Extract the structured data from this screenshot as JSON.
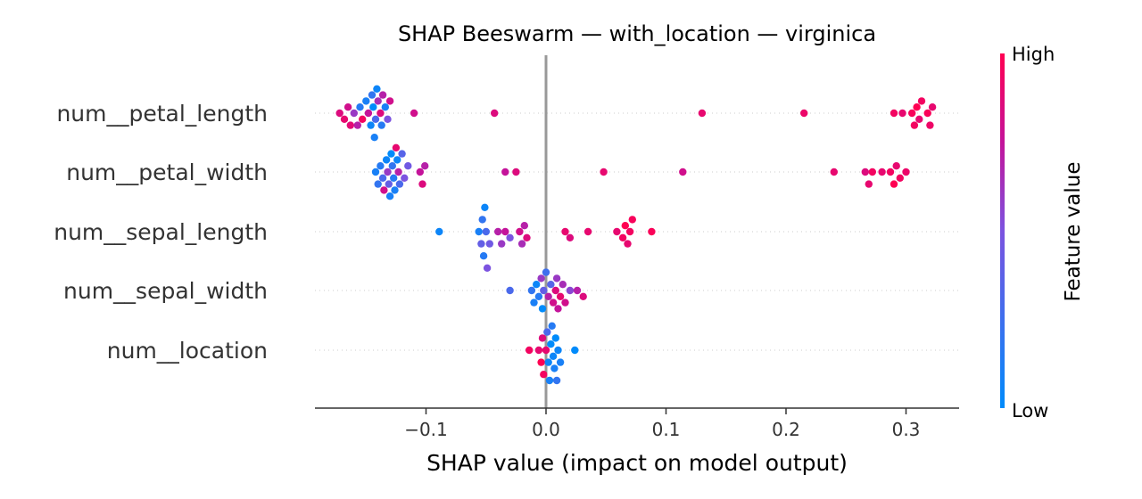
{
  "chart_data": {
    "type": "scatter",
    "subtype": "shap-beeswarm",
    "title": "SHAP Beeswarm — with_location — virginica",
    "xlabel": "SHAP value (impact on model output)",
    "xlim": [
      -0.19,
      0.345
    ],
    "x_ticks": [
      {
        "value": -0.1,
        "label": "−0.1"
      },
      {
        "value": 0.0,
        "label": "0.0"
      },
      {
        "value": 0.1,
        "label": "0.1"
      },
      {
        "value": 0.2,
        "label": "0.2"
      },
      {
        "value": 0.3,
        "label": "0.3"
      }
    ],
    "grid": false,
    "colorbar": {
      "title": "Feature value",
      "high_label": "High",
      "low_label": "Low",
      "high_color": "#ff0052",
      "low_color": "#008bfb"
    },
    "features": [
      {
        "name": "num__petal_length",
        "points": [
          {
            "x": -0.172,
            "v": 0.85
          },
          {
            "x": -0.168,
            "v": 0.9
          },
          {
            "x": -0.165,
            "v": 0.8
          },
          {
            "x": -0.163,
            "v": 0.88
          },
          {
            "x": -0.16,
            "v": 0.6
          },
          {
            "x": -0.157,
            "v": 0.7
          },
          {
            "x": -0.155,
            "v": 0.15
          },
          {
            "x": -0.153,
            "v": 0.95
          },
          {
            "x": -0.15,
            "v": 0.1
          },
          {
            "x": -0.148,
            "v": 0.75
          },
          {
            "x": -0.146,
            "v": 0.05
          },
          {
            "x": -0.145,
            "v": 0.2
          },
          {
            "x": -0.144,
            "v": 0.0
          },
          {
            "x": -0.143,
            "v": 0.1
          },
          {
            "x": -0.142,
            "v": 0.3
          },
          {
            "x": -0.141,
            "v": 0.05
          },
          {
            "x": -0.14,
            "v": 0.65
          },
          {
            "x": -0.138,
            "v": 0.85
          },
          {
            "x": -0.137,
            "v": 0.15
          },
          {
            "x": -0.136,
            "v": 0.7
          },
          {
            "x": -0.134,
            "v": 0.1
          },
          {
            "x": -0.132,
            "v": 0.5
          },
          {
            "x": -0.13,
            "v": 0.8
          },
          {
            "x": -0.11,
            "v": 0.8
          },
          {
            "x": -0.043,
            "v": 0.85
          },
          {
            "x": 0.13,
            "v": 0.9
          },
          {
            "x": 0.215,
            "v": 0.92
          },
          {
            "x": 0.29,
            "v": 0.95
          },
          {
            "x": 0.297,
            "v": 0.9
          },
          {
            "x": 0.305,
            "v": 0.97
          },
          {
            "x": 0.307,
            "v": 0.95
          },
          {
            "x": 0.309,
            "v": 1.0
          },
          {
            "x": 0.311,
            "v": 0.9
          },
          {
            "x": 0.313,
            "v": 0.95
          },
          {
            "x": 0.318,
            "v": 0.98
          },
          {
            "x": 0.32,
            "v": 0.93
          },
          {
            "x": 0.322,
            "v": 0.9
          }
        ]
      },
      {
        "name": "num__petal_width",
        "points": [
          {
            "x": -0.142,
            "v": 0.1
          },
          {
            "x": -0.14,
            "v": 0.2
          },
          {
            "x": -0.138,
            "v": 0.15
          },
          {
            "x": -0.136,
            "v": 0.3
          },
          {
            "x": -0.135,
            "v": 0.8
          },
          {
            "x": -0.133,
            "v": 0.05
          },
          {
            "x": -0.132,
            "v": 0.6
          },
          {
            "x": -0.131,
            "v": 0.4
          },
          {
            "x": -0.13,
            "v": 0.1
          },
          {
            "x": -0.129,
            "v": 0.0
          },
          {
            "x": -0.128,
            "v": 0.2
          },
          {
            "x": -0.127,
            "v": 0.15
          },
          {
            "x": -0.126,
            "v": 0.1
          },
          {
            "x": -0.125,
            "v": 0.9
          },
          {
            "x": -0.124,
            "v": 0.05
          },
          {
            "x": -0.123,
            "v": 0.7
          },
          {
            "x": -0.122,
            "v": 0.3
          },
          {
            "x": -0.12,
            "v": 0.35
          },
          {
            "x": -0.118,
            "v": 0.5
          },
          {
            "x": -0.115,
            "v": 0.45
          },
          {
            "x": -0.105,
            "v": 0.75
          },
          {
            "x": -0.103,
            "v": 0.85
          },
          {
            "x": -0.101,
            "v": 0.7
          },
          {
            "x": -0.034,
            "v": 0.75
          },
          {
            "x": -0.025,
            "v": 0.85
          },
          {
            "x": 0.048,
            "v": 0.9
          },
          {
            "x": 0.114,
            "v": 0.8
          },
          {
            "x": 0.24,
            "v": 0.9
          },
          {
            "x": 0.266,
            "v": 0.85
          },
          {
            "x": 0.269,
            "v": 0.9
          },
          {
            "x": 0.272,
            "v": 0.95
          },
          {
            "x": 0.28,
            "v": 0.9
          },
          {
            "x": 0.287,
            "v": 0.95
          },
          {
            "x": 0.29,
            "v": 1.0
          },
          {
            "x": 0.292,
            "v": 0.9
          },
          {
            "x": 0.295,
            "v": 0.95
          },
          {
            "x": 0.3,
            "v": 0.92
          }
        ]
      },
      {
        "name": "num__sepal_length",
        "points": [
          {
            "x": -0.089,
            "v": 0.05
          },
          {
            "x": -0.056,
            "v": 0.1
          },
          {
            "x": -0.054,
            "v": 0.4
          },
          {
            "x": -0.053,
            "v": 0.2
          },
          {
            "x": -0.052,
            "v": 0.15
          },
          {
            "x": -0.051,
            "v": 0.05
          },
          {
            "x": -0.05,
            "v": 0.3
          },
          {
            "x": -0.049,
            "v": 0.5
          },
          {
            "x": -0.047,
            "v": 0.45
          },
          {
            "x": -0.04,
            "v": 0.7
          },
          {
            "x": -0.037,
            "v": 0.6
          },
          {
            "x": -0.034,
            "v": 0.75
          },
          {
            "x": -0.03,
            "v": 0.5
          },
          {
            "x": -0.022,
            "v": 0.8
          },
          {
            "x": -0.02,
            "v": 0.65
          },
          {
            "x": -0.018,
            "v": 0.7
          },
          {
            "x": -0.016,
            "v": 0.85
          },
          {
            "x": 0.016,
            "v": 0.9
          },
          {
            "x": 0.02,
            "v": 0.85
          },
          {
            "x": 0.035,
            "v": 0.9
          },
          {
            "x": 0.059,
            "v": 0.9
          },
          {
            "x": 0.064,
            "v": 0.95
          },
          {
            "x": 0.066,
            "v": 1.0
          },
          {
            "x": 0.068,
            "v": 0.9
          },
          {
            "x": 0.07,
            "v": 0.95
          },
          {
            "x": 0.072,
            "v": 0.97
          },
          {
            "x": 0.088,
            "v": 0.98
          }
        ]
      },
      {
        "name": "num__sepal_width",
        "points": [
          {
            "x": -0.03,
            "v": 0.3
          },
          {
            "x": -0.012,
            "v": 0.2
          },
          {
            "x": -0.01,
            "v": 0.1
          },
          {
            "x": -0.008,
            "v": 0.05
          },
          {
            "x": -0.006,
            "v": 0.15
          },
          {
            "x": -0.004,
            "v": 0.6
          },
          {
            "x": -0.003,
            "v": 0.0
          },
          {
            "x": -0.002,
            "v": 0.4
          },
          {
            "x": 0.0,
            "v": 0.25
          },
          {
            "x": 0.002,
            "v": 0.7
          },
          {
            "x": 0.004,
            "v": 0.35
          },
          {
            "x": 0.006,
            "v": 0.8
          },
          {
            "x": 0.008,
            "v": 0.85
          },
          {
            "x": 0.009,
            "v": 0.6
          },
          {
            "x": 0.01,
            "v": 0.75
          },
          {
            "x": 0.012,
            "v": 0.9
          },
          {
            "x": 0.014,
            "v": 0.65
          },
          {
            "x": 0.016,
            "v": 0.8
          },
          {
            "x": 0.02,
            "v": 0.55
          },
          {
            "x": 0.026,
            "v": 0.7
          },
          {
            "x": 0.031,
            "v": 0.85
          }
        ]
      },
      {
        "name": "num__location",
        "points": [
          {
            "x": -0.014,
            "v": 0.95
          },
          {
            "x": -0.006,
            "v": 0.9
          },
          {
            "x": -0.004,
            "v": 1.0
          },
          {
            "x": -0.003,
            "v": 0.85
          },
          {
            "x": -0.002,
            "v": 0.95
          },
          {
            "x": 0.0,
            "v": 0.9
          },
          {
            "x": 0.001,
            "v": 0.3
          },
          {
            "x": 0.002,
            "v": 0.05
          },
          {
            "x": 0.003,
            "v": 0.1
          },
          {
            "x": 0.004,
            "v": 0.0
          },
          {
            "x": 0.005,
            "v": 0.15
          },
          {
            "x": 0.006,
            "v": 0.05
          },
          {
            "x": 0.007,
            "v": 0.1
          },
          {
            "x": 0.008,
            "v": 0.0
          },
          {
            "x": 0.009,
            "v": 0.2
          },
          {
            "x": 0.01,
            "v": 0.05
          },
          {
            "x": 0.012,
            "v": 0.1
          },
          {
            "x": 0.024,
            "v": 0.0
          }
        ]
      }
    ]
  }
}
